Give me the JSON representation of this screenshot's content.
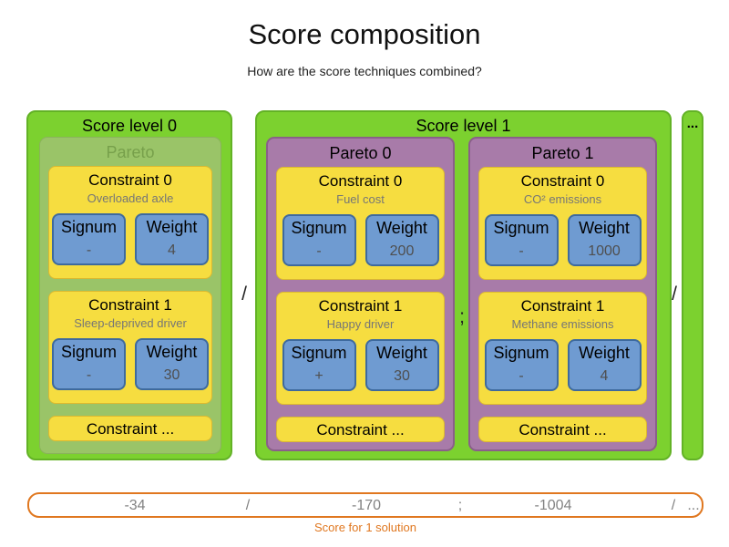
{
  "title": "Score composition",
  "subtitle": "How are the score techniques combined?",
  "labels": {
    "signum": "Signum",
    "weight": "Weight"
  },
  "separators": {
    "level": "/",
    "pareto": ";"
  },
  "ellipsis": "...",
  "levels": [
    {
      "label": "Score level 0",
      "paretos": [
        {
          "label": "Pareto",
          "constraints": [
            {
              "title": "Constraint 0",
              "name": "Overloaded axle",
              "signum": "-",
              "weight": "4"
            },
            {
              "title": "Constraint 1",
              "name": "Sleep-deprived driver",
              "signum": "-",
              "weight": "30"
            }
          ],
          "more": "Constraint ..."
        }
      ]
    },
    {
      "label": "Score level 1",
      "paretos": [
        {
          "label": "Pareto 0",
          "constraints": [
            {
              "title": "Constraint 0",
              "name": "Fuel cost",
              "signum": "-",
              "weight": "200"
            },
            {
              "title": "Constraint 1",
              "name": "Happy driver",
              "signum": "+",
              "weight": "30"
            }
          ],
          "more": "Constraint ..."
        },
        {
          "label": "Pareto 1",
          "constraints": [
            {
              "title": "Constraint 0",
              "name": "CO² emissions",
              "signum": "-",
              "weight": "1000"
            },
            {
              "title": "Constraint 1",
              "name": "Methane emissions",
              "signum": "-",
              "weight": "4"
            }
          ],
          "more": "Constraint ..."
        }
      ]
    }
  ],
  "score_bar": {
    "items": [
      "-34",
      "/",
      "-170",
      ";",
      "-1004",
      "/",
      "..."
    ],
    "caption": "Score for 1 solution"
  },
  "colors": {
    "green": "#7cd12f",
    "green_border": "#63b226",
    "faded_green": "#9ac468",
    "purple": "#a87ba9",
    "purple_border": "#8a5f8a",
    "yellow": "#f6dd40",
    "yellow_border": "#dcb92f",
    "blue": "#6f9bd1",
    "blue_border": "#3e6a9e",
    "orange": "#e0771f",
    "value_gray": "#4f4f4f",
    "label_gray": "#767676"
  }
}
